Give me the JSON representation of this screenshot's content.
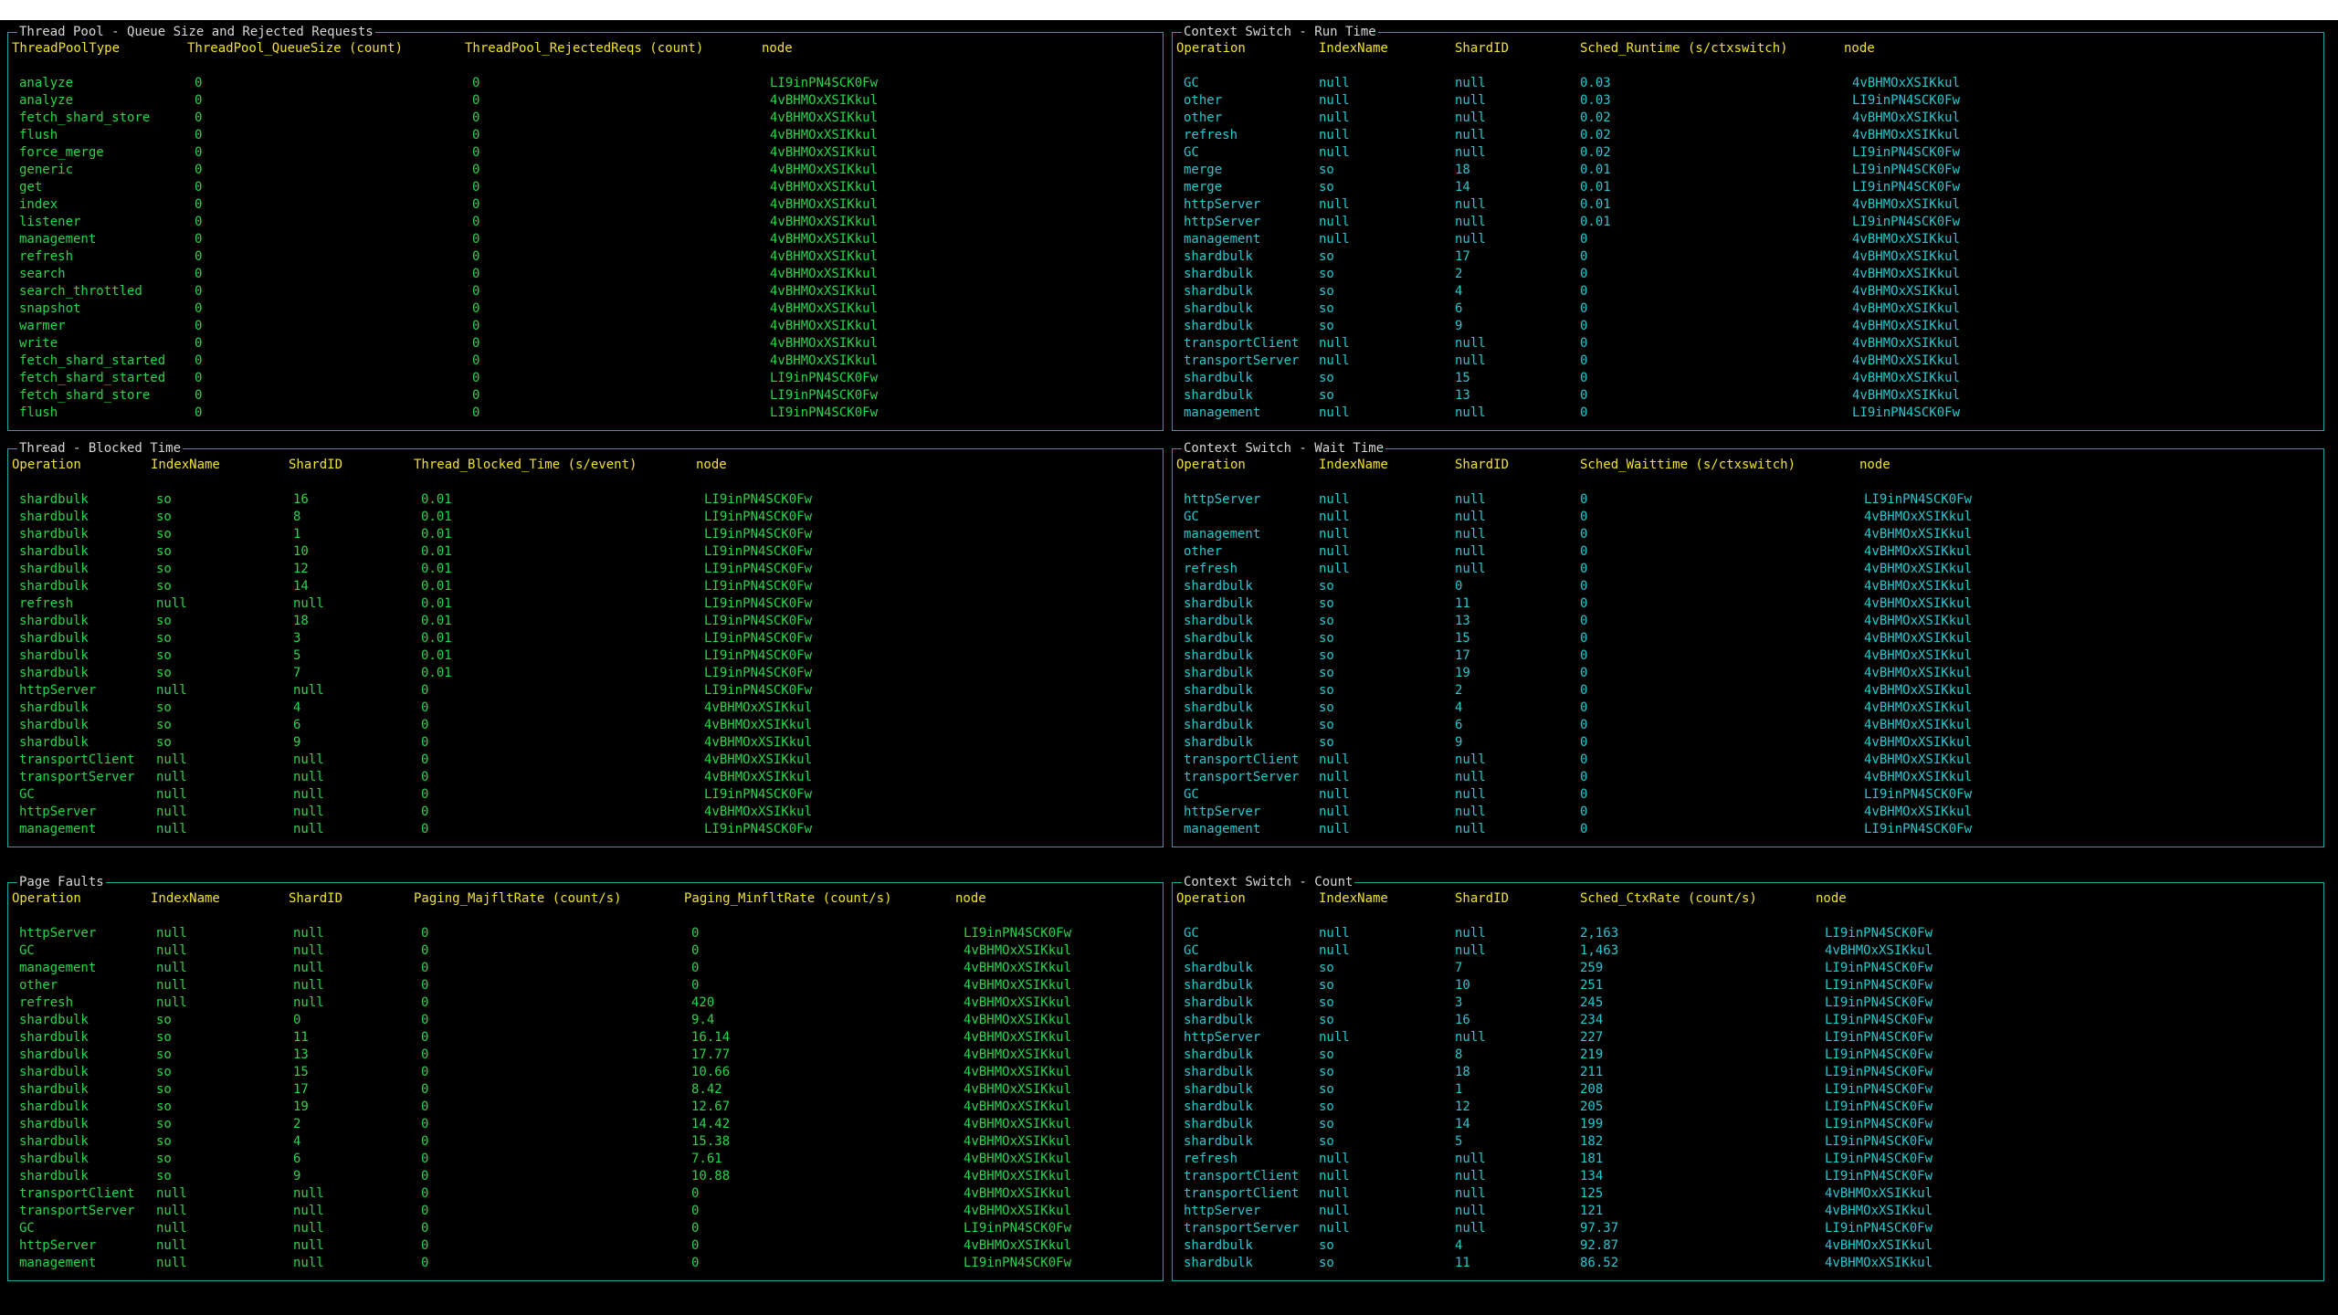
{
  "panels": {
    "threadpool": {
      "title": "Thread Pool - Queue Size and Rejected Requests",
      "headers": [
        "ThreadPoolType",
        "ThreadPool_QueueSize (count)",
        "ThreadPool_RejectedReqs (count)",
        "node"
      ],
      "rows": [
        [
          "analyze",
          "0",
          "0",
          "LI9inPN4SCK0Fw"
        ],
        [
          "analyze",
          "0",
          "0",
          "4vBHMOxXSIKkul"
        ],
        [
          "fetch_shard_store",
          "0",
          "0",
          "4vBHMOxXSIKkul"
        ],
        [
          "flush",
          "0",
          "0",
          "4vBHMOxXSIKkul"
        ],
        [
          "force_merge",
          "0",
          "0",
          "4vBHMOxXSIKkul"
        ],
        [
          "generic",
          "0",
          "0",
          "4vBHMOxXSIKkul"
        ],
        [
          "get",
          "0",
          "0",
          "4vBHMOxXSIKkul"
        ],
        [
          "index",
          "0",
          "0",
          "4vBHMOxXSIKkul"
        ],
        [
          "listener",
          "0",
          "0",
          "4vBHMOxXSIKkul"
        ],
        [
          "management",
          "0",
          "0",
          "4vBHMOxXSIKkul"
        ],
        [
          "refresh",
          "0",
          "0",
          "4vBHMOxXSIKkul"
        ],
        [
          "search",
          "0",
          "0",
          "4vBHMOxXSIKkul"
        ],
        [
          "search_throttled",
          "0",
          "0",
          "4vBHMOxXSIKkul"
        ],
        [
          "snapshot",
          "0",
          "0",
          "4vBHMOxXSIKkul"
        ],
        [
          "warmer",
          "0",
          "0",
          "4vBHMOxXSIKkul"
        ],
        [
          "write",
          "0",
          "0",
          "4vBHMOxXSIKkul"
        ],
        [
          "fetch_shard_started",
          "0",
          "0",
          "4vBHMOxXSIKkul"
        ],
        [
          "fetch_shard_started",
          "0",
          "0",
          "LI9inPN4SCK0Fw"
        ],
        [
          "fetch_shard_store",
          "0",
          "0",
          "LI9inPN4SCK0Fw"
        ],
        [
          "flush",
          "0",
          "0",
          "LI9inPN4SCK0Fw"
        ]
      ]
    },
    "runtime": {
      "title": "Context Switch - Run Time",
      "headers": [
        "Operation",
        "IndexName",
        "ShardID",
        "Sched_Runtime (s/ctxswitch)",
        "node"
      ],
      "rows": [
        [
          "GC",
          "null",
          "null",
          "0.03",
          "4vBHMOxXSIKkul"
        ],
        [
          "other",
          "null",
          "null",
          "0.03",
          "LI9inPN4SCK0Fw"
        ],
        [
          "other",
          "null",
          "null",
          "0.02",
          "4vBHMOxXSIKkul"
        ],
        [
          "refresh",
          "null",
          "null",
          "0.02",
          "4vBHMOxXSIKkul"
        ],
        [
          "GC",
          "null",
          "null",
          "0.02",
          "LI9inPN4SCK0Fw"
        ],
        [
          "merge",
          "so",
          "18",
          "0.01",
          "LI9inPN4SCK0Fw"
        ],
        [
          "merge",
          "so",
          "14",
          "0.01",
          "LI9inPN4SCK0Fw"
        ],
        [
          "httpServer",
          "null",
          "null",
          "0.01",
          "4vBHMOxXSIKkul"
        ],
        [
          "httpServer",
          "null",
          "null",
          "0.01",
          "LI9inPN4SCK0Fw"
        ],
        [
          "management",
          "null",
          "null",
          "0",
          "4vBHMOxXSIKkul"
        ],
        [
          "shardbulk",
          "so",
          "17",
          "0",
          "4vBHMOxXSIKkul"
        ],
        [
          "shardbulk",
          "so",
          "2",
          "0",
          "4vBHMOxXSIKkul"
        ],
        [
          "shardbulk",
          "so",
          "4",
          "0",
          "4vBHMOxXSIKkul"
        ],
        [
          "shardbulk",
          "so",
          "6",
          "0",
          "4vBHMOxXSIKkul"
        ],
        [
          "shardbulk",
          "so",
          "9",
          "0",
          "4vBHMOxXSIKkul"
        ],
        [
          "transportClient",
          "null",
          "null",
          "0",
          "4vBHMOxXSIKkul"
        ],
        [
          "transportServer",
          "null",
          "null",
          "0",
          "4vBHMOxXSIKkul"
        ],
        [
          "shardbulk",
          "so",
          "15",
          "0",
          "4vBHMOxXSIKkul"
        ],
        [
          "shardbulk",
          "so",
          "13",
          "0",
          "4vBHMOxXSIKkul"
        ],
        [
          "management",
          "null",
          "null",
          "0",
          "LI9inPN4SCK0Fw"
        ]
      ]
    },
    "blocked": {
      "title": "Thread - Blocked Time",
      "headers": [
        "Operation",
        "IndexName",
        "ShardID",
        "Thread_Blocked_Time (s/event)",
        "node"
      ],
      "rows": [
        [
          "shardbulk",
          "so",
          "16",
          "0.01",
          "LI9inPN4SCK0Fw"
        ],
        [
          "shardbulk",
          "so",
          "8",
          "0.01",
          "LI9inPN4SCK0Fw"
        ],
        [
          "shardbulk",
          "so",
          "1",
          "0.01",
          "LI9inPN4SCK0Fw"
        ],
        [
          "shardbulk",
          "so",
          "10",
          "0.01",
          "LI9inPN4SCK0Fw"
        ],
        [
          "shardbulk",
          "so",
          "12",
          "0.01",
          "LI9inPN4SCK0Fw"
        ],
        [
          "shardbulk",
          "so",
          "14",
          "0.01",
          "LI9inPN4SCK0Fw"
        ],
        [
          "refresh",
          "null",
          "null",
          "0.01",
          "LI9inPN4SCK0Fw"
        ],
        [
          "shardbulk",
          "so",
          "18",
          "0.01",
          "LI9inPN4SCK0Fw"
        ],
        [
          "shardbulk",
          "so",
          "3",
          "0.01",
          "LI9inPN4SCK0Fw"
        ],
        [
          "shardbulk",
          "so",
          "5",
          "0.01",
          "LI9inPN4SCK0Fw"
        ],
        [
          "shardbulk",
          "so",
          "7",
          "0.01",
          "LI9inPN4SCK0Fw"
        ],
        [
          "httpServer",
          "null",
          "null",
          "0",
          "LI9inPN4SCK0Fw"
        ],
        [
          "shardbulk",
          "so",
          "4",
          "0",
          "4vBHMOxXSIKkul"
        ],
        [
          "shardbulk",
          "so",
          "6",
          "0",
          "4vBHMOxXSIKkul"
        ],
        [
          "shardbulk",
          "so",
          "9",
          "0",
          "4vBHMOxXSIKkul"
        ],
        [
          "transportClient",
          "null",
          "null",
          "0",
          "4vBHMOxXSIKkul"
        ],
        [
          "transportServer",
          "null",
          "null",
          "0",
          "4vBHMOxXSIKkul"
        ],
        [
          "GC",
          "null",
          "null",
          "0",
          "LI9inPN4SCK0Fw"
        ],
        [
          "httpServer",
          "null",
          "null",
          "0",
          "4vBHMOxXSIKkul"
        ],
        [
          "management",
          "null",
          "null",
          "0",
          "LI9inPN4SCK0Fw"
        ]
      ]
    },
    "waittime": {
      "title": "Context Switch - Wait Time",
      "headers": [
        "Operation",
        "IndexName",
        "ShardID",
        "Sched_Waittime (s/ctxswitch)",
        "node"
      ],
      "rows": [
        [
          "httpServer",
          "null",
          "null",
          "0",
          "LI9inPN4SCK0Fw"
        ],
        [
          "GC",
          "null",
          "null",
          "0",
          "4vBHMOxXSIKkul"
        ],
        [
          "management",
          "null",
          "null",
          "0",
          "4vBHMOxXSIKkul"
        ],
        [
          "other",
          "null",
          "null",
          "0",
          "4vBHMOxXSIKkul"
        ],
        [
          "refresh",
          "null",
          "null",
          "0",
          "4vBHMOxXSIKkul"
        ],
        [
          "shardbulk",
          "so",
          "0",
          "0",
          "4vBHMOxXSIKkul"
        ],
        [
          "shardbulk",
          "so",
          "11",
          "0",
          "4vBHMOxXSIKkul"
        ],
        [
          "shardbulk",
          "so",
          "13",
          "0",
          "4vBHMOxXSIKkul"
        ],
        [
          "shardbulk",
          "so",
          "15",
          "0",
          "4vBHMOxXSIKkul"
        ],
        [
          "shardbulk",
          "so",
          "17",
          "0",
          "4vBHMOxXSIKkul"
        ],
        [
          "shardbulk",
          "so",
          "19",
          "0",
          "4vBHMOxXSIKkul"
        ],
        [
          "shardbulk",
          "so",
          "2",
          "0",
          "4vBHMOxXSIKkul"
        ],
        [
          "shardbulk",
          "so",
          "4",
          "0",
          "4vBHMOxXSIKkul"
        ],
        [
          "shardbulk",
          "so",
          "6",
          "0",
          "4vBHMOxXSIKkul"
        ],
        [
          "shardbulk",
          "so",
          "9",
          "0",
          "4vBHMOxXSIKkul"
        ],
        [
          "transportClient",
          "null",
          "null",
          "0",
          "4vBHMOxXSIKkul"
        ],
        [
          "transportServer",
          "null",
          "null",
          "0",
          "4vBHMOxXSIKkul"
        ],
        [
          "GC",
          "null",
          "null",
          "0",
          "LI9inPN4SCK0Fw"
        ],
        [
          "httpServer",
          "null",
          "null",
          "0",
          "4vBHMOxXSIKkul"
        ],
        [
          "management",
          "null",
          "null",
          "0",
          "LI9inPN4SCK0Fw"
        ]
      ]
    },
    "pagefaults": {
      "title": "Page Faults",
      "headers": [
        "Operation",
        "IndexName",
        "ShardID",
        "Paging_MajfltRate (count/s)",
        "Paging_MinfltRate (count/s)",
        "node"
      ],
      "rows": [
        [
          "httpServer",
          "null",
          "null",
          "0",
          "0",
          "LI9inPN4SCK0Fw"
        ],
        [
          "GC",
          "null",
          "null",
          "0",
          "0",
          "4vBHMOxXSIKkul"
        ],
        [
          "management",
          "null",
          "null",
          "0",
          "0",
          "4vBHMOxXSIKkul"
        ],
        [
          "other",
          "null",
          "null",
          "0",
          "0",
          "4vBHMOxXSIKkul"
        ],
        [
          "refresh",
          "null",
          "null",
          "0",
          "420",
          "4vBHMOxXSIKkul"
        ],
        [
          "shardbulk",
          "so",
          "0",
          "0",
          "9.4",
          "4vBHMOxXSIKkul"
        ],
        [
          "shardbulk",
          "so",
          "11",
          "0",
          "16.14",
          "4vBHMOxXSIKkul"
        ],
        [
          "shardbulk",
          "so",
          "13",
          "0",
          "17.77",
          "4vBHMOxXSIKkul"
        ],
        [
          "shardbulk",
          "so",
          "15",
          "0",
          "10.66",
          "4vBHMOxXSIKkul"
        ],
        [
          "shardbulk",
          "so",
          "17",
          "0",
          "8.42",
          "4vBHMOxXSIKkul"
        ],
        [
          "shardbulk",
          "so",
          "19",
          "0",
          "12.67",
          "4vBHMOxXSIKkul"
        ],
        [
          "shardbulk",
          "so",
          "2",
          "0",
          "14.42",
          "4vBHMOxXSIKkul"
        ],
        [
          "shardbulk",
          "so",
          "4",
          "0",
          "15.38",
          "4vBHMOxXSIKkul"
        ],
        [
          "shardbulk",
          "so",
          "6",
          "0",
          "7.61",
          "4vBHMOxXSIKkul"
        ],
        [
          "shardbulk",
          "so",
          "9",
          "0",
          "10.88",
          "4vBHMOxXSIKkul"
        ],
        [
          "transportClient",
          "null",
          "null",
          "0",
          "0",
          "4vBHMOxXSIKkul"
        ],
        [
          "transportServer",
          "null",
          "null",
          "0",
          "0",
          "4vBHMOxXSIKkul"
        ],
        [
          "GC",
          "null",
          "null",
          "0",
          "0",
          "LI9inPN4SCK0Fw"
        ],
        [
          "httpServer",
          "null",
          "null",
          "0",
          "0",
          "4vBHMOxXSIKkul"
        ],
        [
          "management",
          "null",
          "null",
          "0",
          "0",
          "LI9inPN4SCK0Fw"
        ]
      ]
    },
    "ctxcount": {
      "title": "Context Switch - Count",
      "headers": [
        "Operation",
        "IndexName",
        "ShardID",
        "Sched_CtxRate (count/s)",
        "node"
      ],
      "rows": [
        [
          "GC",
          "null",
          "null",
          "2,163",
          "LI9inPN4SCK0Fw"
        ],
        [
          "GC",
          "null",
          "null",
          "1,463",
          "4vBHMOxXSIKkul"
        ],
        [
          "shardbulk",
          "so",
          "7",
          "259",
          "LI9inPN4SCK0Fw"
        ],
        [
          "shardbulk",
          "so",
          "10",
          "251",
          "LI9inPN4SCK0Fw"
        ],
        [
          "shardbulk",
          "so",
          "3",
          "245",
          "LI9inPN4SCK0Fw"
        ],
        [
          "shardbulk",
          "so",
          "16",
          "234",
          "LI9inPN4SCK0Fw"
        ],
        [
          "httpServer",
          "null",
          "null",
          "227",
          "LI9inPN4SCK0Fw"
        ],
        [
          "shardbulk",
          "so",
          "8",
          "219",
          "LI9inPN4SCK0Fw"
        ],
        [
          "shardbulk",
          "so",
          "18",
          "211",
          "LI9inPN4SCK0Fw"
        ],
        [
          "shardbulk",
          "so",
          "1",
          "208",
          "LI9inPN4SCK0Fw"
        ],
        [
          "shardbulk",
          "so",
          "12",
          "205",
          "LI9inPN4SCK0Fw"
        ],
        [
          "shardbulk",
          "so",
          "14",
          "199",
          "LI9inPN4SCK0Fw"
        ],
        [
          "shardbulk",
          "so",
          "5",
          "182",
          "LI9inPN4SCK0Fw"
        ],
        [
          "refresh",
          "null",
          "null",
          "181",
          "LI9inPN4SCK0Fw"
        ],
        [
          "transportClient",
          "null",
          "null",
          "134",
          "LI9inPN4SCK0Fw"
        ],
        [
          "transportClient",
          "null",
          "null",
          "125",
          "4vBHMOxXSIKkul"
        ],
        [
          "httpServer",
          "null",
          "null",
          "121",
          "4vBHMOxXSIKkul"
        ],
        [
          "transportServer",
          "null",
          "null",
          "97.37",
          "LI9inPN4SCK0Fw"
        ],
        [
          "shardbulk",
          "so",
          "4",
          "92.87",
          "4vBHMOxXSIKkul"
        ],
        [
          "shardbulk",
          "so",
          "11",
          "86.52",
          "4vBHMOxXSIKkul"
        ]
      ]
    }
  }
}
